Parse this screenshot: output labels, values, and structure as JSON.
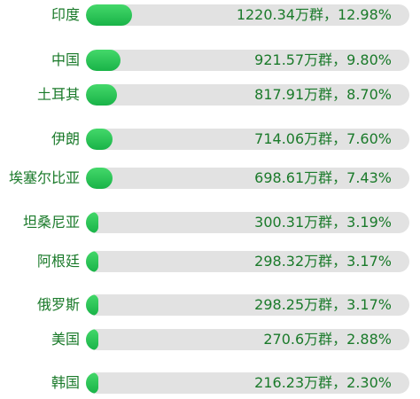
{
  "chart_data": {
    "type": "bar",
    "orientation": "horizontal",
    "categories": [
      "印度",
      "中国",
      "土耳其",
      "伊朗",
      "埃塞尔比亚",
      "坦桑尼亚",
      "阿根廷",
      "俄罗斯",
      "美国",
      "韩国"
    ],
    "values": [
      1220.34,
      921.57,
      817.91,
      714.06,
      698.61,
      300.31,
      298.32,
      298.25,
      270.6,
      216.23
    ],
    "percents": [
      12.98,
      9.8,
      8.7,
      7.6,
      7.43,
      3.19,
      3.17,
      3.17,
      2.88,
      2.3
    ],
    "labels": [
      "1220.34万群，12.98%",
      "921.57万群，9.80%",
      "817.91万群，8.70%",
      "714.06万群，7.60%",
      "698.61万群，7.43%",
      "300.31万群，3.19%",
      "298.32万群，3.17%",
      "298.25万群，3.17%",
      "270.6万群，2.88%",
      "216.23万群，2.30%"
    ],
    "unit": "万群",
    "grid": false,
    "legend": "none"
  },
  "colors": {
    "bar_fill": "#2ec55a",
    "track": "#e2e2e2",
    "text": "#1a7a2a"
  }
}
